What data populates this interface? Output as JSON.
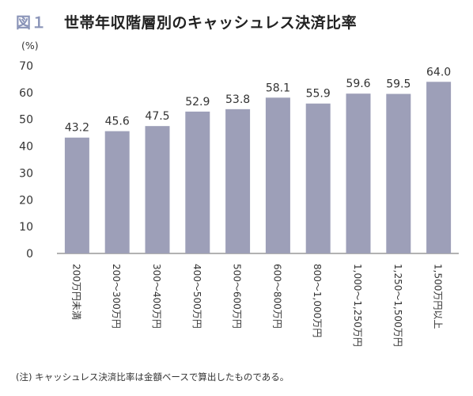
{
  "figure_number": "図１",
  "title": "世帯年収階層別のキャッシュレス決済比率",
  "note": "(注) キャッシュレス決済比率は金額ベースで算出したものである。",
  "colors": {
    "bar": "#9d9fb8",
    "axis": "#666666",
    "title_number": "#8a94b8"
  },
  "chart_data": {
    "type": "bar",
    "ylabel": "(%)",
    "ylim": [
      0,
      70
    ],
    "yticks": [
      0,
      10,
      20,
      30,
      40,
      50,
      60,
      70
    ],
    "grid": false,
    "categories": [
      "200万円未満",
      "200～300万円",
      "300～400万円",
      "400～500万円",
      "500～600万円",
      "600～800万円",
      "800～1,000万円",
      "1,000～1,250万円",
      "1,250～1,500万円",
      "1,500万円以上"
    ],
    "values": [
      43.2,
      45.6,
      47.5,
      52.9,
      53.8,
      58.1,
      55.9,
      59.6,
      59.5,
      64.0
    ],
    "value_labels": [
      "43.2",
      "45.6",
      "47.5",
      "52.9",
      "53.8",
      "58.1",
      "55.9",
      "59.6",
      "59.5",
      "64.0"
    ]
  }
}
